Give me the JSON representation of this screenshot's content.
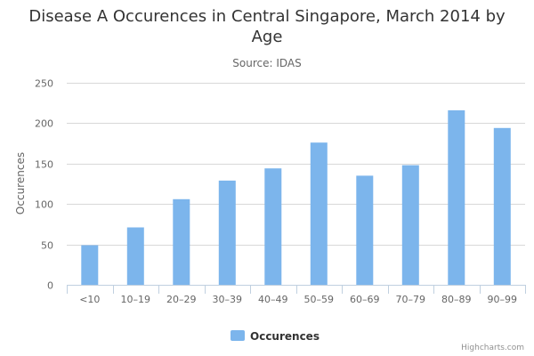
{
  "chart_data": {
    "type": "bar",
    "title": "Disease A Occurences in Central Singapore, March 2014 by Age",
    "subtitle": "Source: IDAS",
    "xlabel": "",
    "ylabel": "Occurences",
    "categories": [
      "<10",
      "10–19",
      "20–29",
      "30–39",
      "40–49",
      "50–59",
      "60–69",
      "70–79",
      "80–89",
      "90–99"
    ],
    "series": [
      {
        "name": "Occurences",
        "color": "#7cb5ec",
        "values": [
          49,
          71,
          106,
          129,
          144,
          176,
          135,
          148,
          216,
          194
        ]
      }
    ],
    "yticks": [
      0,
      50,
      100,
      150,
      200,
      250
    ],
    "ylim": [
      0,
      250
    ],
    "grid": true,
    "legend_position": "bottom-center"
  },
  "credits": "Highcharts.com"
}
